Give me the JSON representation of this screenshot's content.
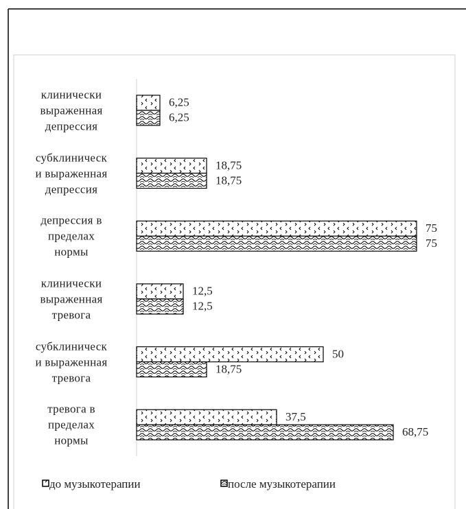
{
  "chart_data": {
    "type": "barh",
    "categories": [
      "клинически\nвыраженная\nдепрессия",
      "субклиническ\nи выраженная\nдепрессия",
      "депрессия в\nпределах\nнормы",
      "клинически\nвыраженная\nтревога",
      "субклиническ\nи выраженная\nтревога",
      "тревога в\nпределах\nнормы"
    ],
    "series": [
      {
        "name": "до музыкотерапии",
        "color": "#000000",
        "values": [
          6.25,
          18.75,
          75,
          12.5,
          50,
          37.5
        ],
        "value_labels": [
          "6,25",
          "18,75",
          "75",
          "12,5",
          "50",
          "37,5"
        ]
      },
      {
        "name": "после музыкотерапии",
        "color": "#000000",
        "values": [
          6.25,
          18.75,
          75,
          12.5,
          18.75,
          68.75
        ],
        "value_labels": [
          "6,25",
          "18,75",
          "75",
          "12,5",
          "18,75",
          "68,75"
        ]
      }
    ],
    "legend": "bottom"
  }
}
